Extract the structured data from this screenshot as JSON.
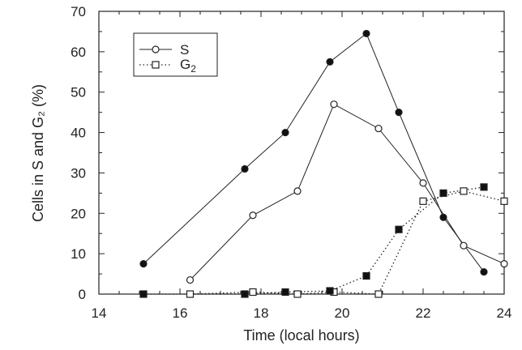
{
  "chart_data": {
    "type": "line",
    "title": "",
    "xlabel": "Time (local hours)",
    "ylabel": "Cells in S and G₂ (%)",
    "xlim": [
      14,
      24
    ],
    "ylim": [
      0,
      70
    ],
    "xticks": [
      14,
      16,
      18,
      20,
      22,
      24
    ],
    "yticks": [
      0,
      10,
      20,
      30,
      40,
      50,
      60,
      70
    ],
    "grid": false,
    "legend_position": "top-left",
    "series": [
      {
        "name": "S",
        "marker": "open-circle",
        "line_style": "solid",
        "points": [
          [
            16.25,
            3.5
          ],
          [
            17.8,
            19.5
          ],
          [
            18.9,
            25.5
          ],
          [
            19.8,
            47
          ],
          [
            20.9,
            41
          ],
          [
            22.0,
            27.5
          ],
          [
            23.0,
            12
          ],
          [
            24.0,
            7.5
          ]
        ]
      },
      {
        "name": "G₂",
        "marker": "open-square",
        "line_style": "dotted",
        "points": [
          [
            16.25,
            0
          ],
          [
            17.8,
            0.5
          ],
          [
            18.9,
            0
          ],
          [
            19.8,
            0.5
          ],
          [
            20.9,
            0
          ],
          [
            22.0,
            23
          ],
          [
            23.0,
            25.5
          ],
          [
            24.0,
            23
          ]
        ]
      },
      {
        "marker": "filled-circle",
        "line_style": "solid",
        "points": [
          [
            15.1,
            7.5
          ],
          [
            17.6,
            31
          ],
          [
            18.6,
            40
          ],
          [
            19.7,
            57.5
          ],
          [
            20.6,
            64.5
          ],
          [
            21.4,
            45
          ],
          [
            22.5,
            19
          ],
          [
            23.5,
            5.5
          ]
        ]
      },
      {
        "marker": "filled-square",
        "line_style": "dotted",
        "points": [
          [
            15.1,
            0
          ],
          [
            17.6,
            0
          ],
          [
            18.6,
            0.5
          ],
          [
            19.7,
            0.8
          ],
          [
            20.6,
            4.5
          ],
          [
            21.4,
            16
          ],
          [
            22.5,
            25
          ],
          [
            23.5,
            26.5
          ]
        ]
      }
    ],
    "legend": [
      {
        "label": "S",
        "subscript": "",
        "marker": "open-circle",
        "line_style": "solid"
      },
      {
        "label": "G",
        "subscript": "2",
        "marker": "open-square",
        "line_style": "dotted"
      }
    ]
  }
}
